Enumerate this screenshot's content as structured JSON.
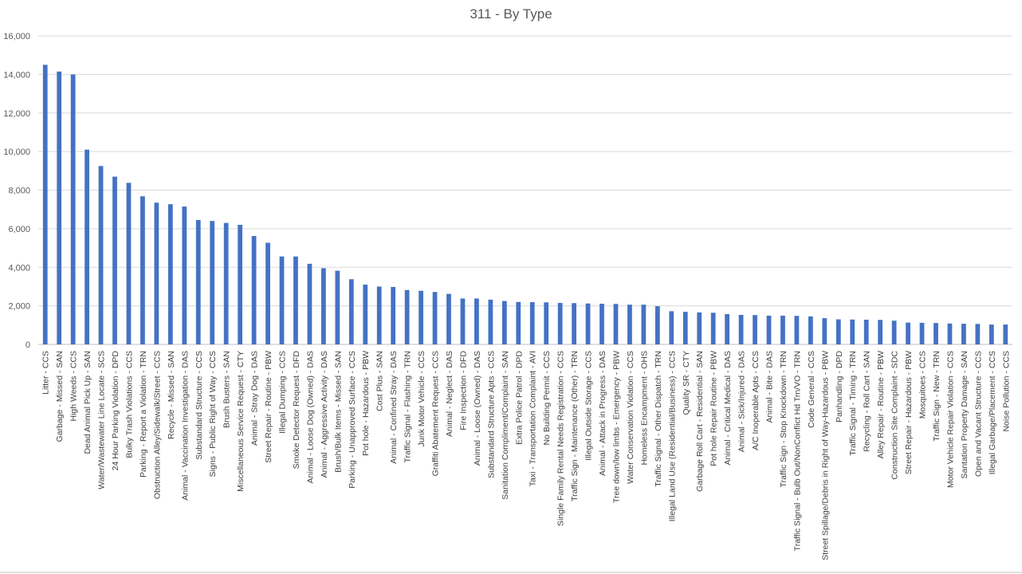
{
  "chart_data": {
    "type": "bar",
    "title": "311 - By Type",
    "xlabel": "",
    "ylabel": "",
    "ylim": [
      0,
      16000
    ],
    "yticks": [
      0,
      2000,
      4000,
      6000,
      8000,
      10000,
      12000,
      14000,
      16000
    ],
    "ytick_labels": [
      "0",
      "2,000",
      "4,000",
      "6,000",
      "8,000",
      "10,000",
      "12,000",
      "14,000",
      "16,000"
    ],
    "grid": true,
    "legend": "none",
    "bar_color": "#4472c4",
    "categories": [
      "Litter - CCS",
      "Garbage - Missed - SAN",
      "High Weeds - CCS",
      "Dead Animal Pick Up - SAN",
      "Water/Wastewater Line Locate - SCS",
      "24 Hour Parking Violation - DPD",
      "Bulky Trash Violations - CCS",
      "Parking - Report a Violation - TRN",
      "Obstruction Alley/Sidewalk/Street - CCS",
      "Recycle - Missed - SAN",
      "Animal - Vaccination Investigation - DAS",
      "Substandard Structure - CCS",
      "Signs - Public Right of Way - CCS",
      "Brush Busters - SAN",
      "Miscellaneous Service Request - CTY",
      "Animal - Stray Dog - DAS",
      "Street Repair - Routine - PBW",
      "Illegal Dumping - CCS",
      "Smoke Detector Request - DFD",
      "Animal - Loose Dog (Owned) - DAS",
      "Animal - Aggressive Activity - DAS",
      "Brush/Bulk Items - Missed - SAN",
      "Parking - Unapproved Surface - CCS",
      "Pot hole - Hazardous - PBW",
      "Cost Plus - SAN",
      "Animal - Confined Stray - DAS",
      "Traffic Signal - Flashing - TRN",
      "Junk Motor Vehicle - CCS",
      "Graffiti Abatement Request - CCS",
      "Animal - Neglect - DAS",
      "Fire Inspection - DFD",
      "Animal - Loose (Owned) - DAS",
      "Substandard Structure Apts - CCS",
      "Sanitation Compliment/Complaint - SAN",
      "Extra Police Patrol - DPD",
      "Taxi - Transportation Complaint - AVI",
      "No Building Permit - CCS",
      "Single Family Rental Needs Registration - CCS",
      "Traffic Sign - Maintenance (Other) - TRN",
      "Illegal Outside Storage - CCS",
      "Animal - Attack in Progress - DAS",
      "Tree down/low limbs - Emergency - PBW",
      "Water Conservation Violation - CCS",
      "Homeless Encampment - OHS",
      "Traffic Signal - Other Dispatch - TRN",
      "Illegal Land Use (Residential/Business) - CCS",
      "Quality SR - CTY",
      "Garbage Roll Cart - Residential - SAN",
      "Pot hole Repair Routine - PBW",
      "Animal - Critical Medical - DAS",
      "Animal - Sick/Injured - DAS",
      "A/C Inoperable Apts - CCS",
      "Animal - Bite - DAS",
      "Traffic Sign - Stop Knockdown - TRN",
      "Traffic Signal - Bulb Out/NonConflict Hd Trn/VO - TRN",
      "Code General - CCS",
      "Street Spillage/Debris in Right of Way-Hazardous - PBW",
      "Panhandling - DPD",
      "Traffic Signal - Timing - TRN",
      "Recycling - Roll Cart - SAN",
      "Alley Repair - Routine - PBW",
      "Construction Site Complaint - SDC",
      "Street Repair - Hazardous - PBW",
      "Mosquitoes - CCS",
      "Traffic Sign - New - TRN",
      "Motor Vehicle Repair Violation - CCS",
      "Santation Property Damage - SAN",
      "Open and Vacant Structure - CCS",
      "Illegal Garbage/Placement - CCS",
      "Noise Pollution - CCS"
    ],
    "values": [
      14500,
      14150,
      14000,
      10100,
      9250,
      8700,
      8380,
      7680,
      7350,
      7270,
      7150,
      6450,
      6400,
      6300,
      6200,
      5620,
      5270,
      4560,
      4560,
      4180,
      3950,
      3820,
      3380,
      3100,
      3000,
      2980,
      2820,
      2780,
      2720,
      2620,
      2380,
      2380,
      2320,
      2250,
      2200,
      2190,
      2180,
      2150,
      2140,
      2120,
      2110,
      2100,
      2060,
      2060,
      1980,
      1720,
      1690,
      1660,
      1640,
      1570,
      1530,
      1520,
      1490,
      1490,
      1480,
      1450,
      1360,
      1300,
      1290,
      1280,
      1270,
      1230,
      1130,
      1120,
      1110,
      1080,
      1070,
      1060,
      1030,
      1030
    ]
  }
}
